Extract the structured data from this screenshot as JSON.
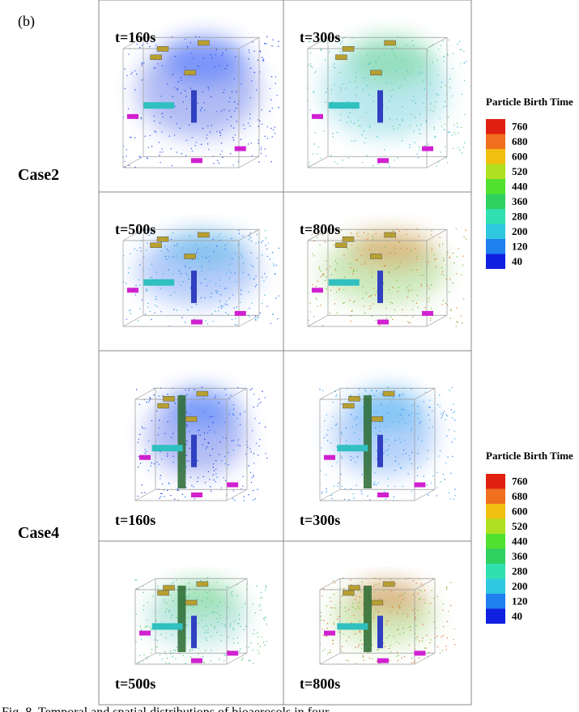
{
  "panel_label": "(b)",
  "cases": [
    {
      "label": "Case2",
      "panels": [
        {
          "time": "t=160s"
        },
        {
          "time": "t=300s"
        },
        {
          "time": "t=500s"
        },
        {
          "time": "t=800s"
        }
      ]
    },
    {
      "label": "Case4",
      "panels": [
        {
          "time": "t=160s"
        },
        {
          "time": "t=300s"
        },
        {
          "time": "t=500s"
        },
        {
          "time": "t=800s"
        }
      ]
    }
  ],
  "colorbars": [
    {
      "title": "Particle Birth Time",
      "ticks": [
        760,
        680,
        600,
        520,
        440,
        360,
        280,
        200,
        120,
        40
      ]
    },
    {
      "title": "Particle Birth Time",
      "ticks": [
        760,
        680,
        600,
        520,
        440,
        360,
        280,
        200,
        120,
        40
      ]
    }
  ],
  "caption": "Fig. 8. Temporal and spatial distributions of bioaerosols in four"
}
